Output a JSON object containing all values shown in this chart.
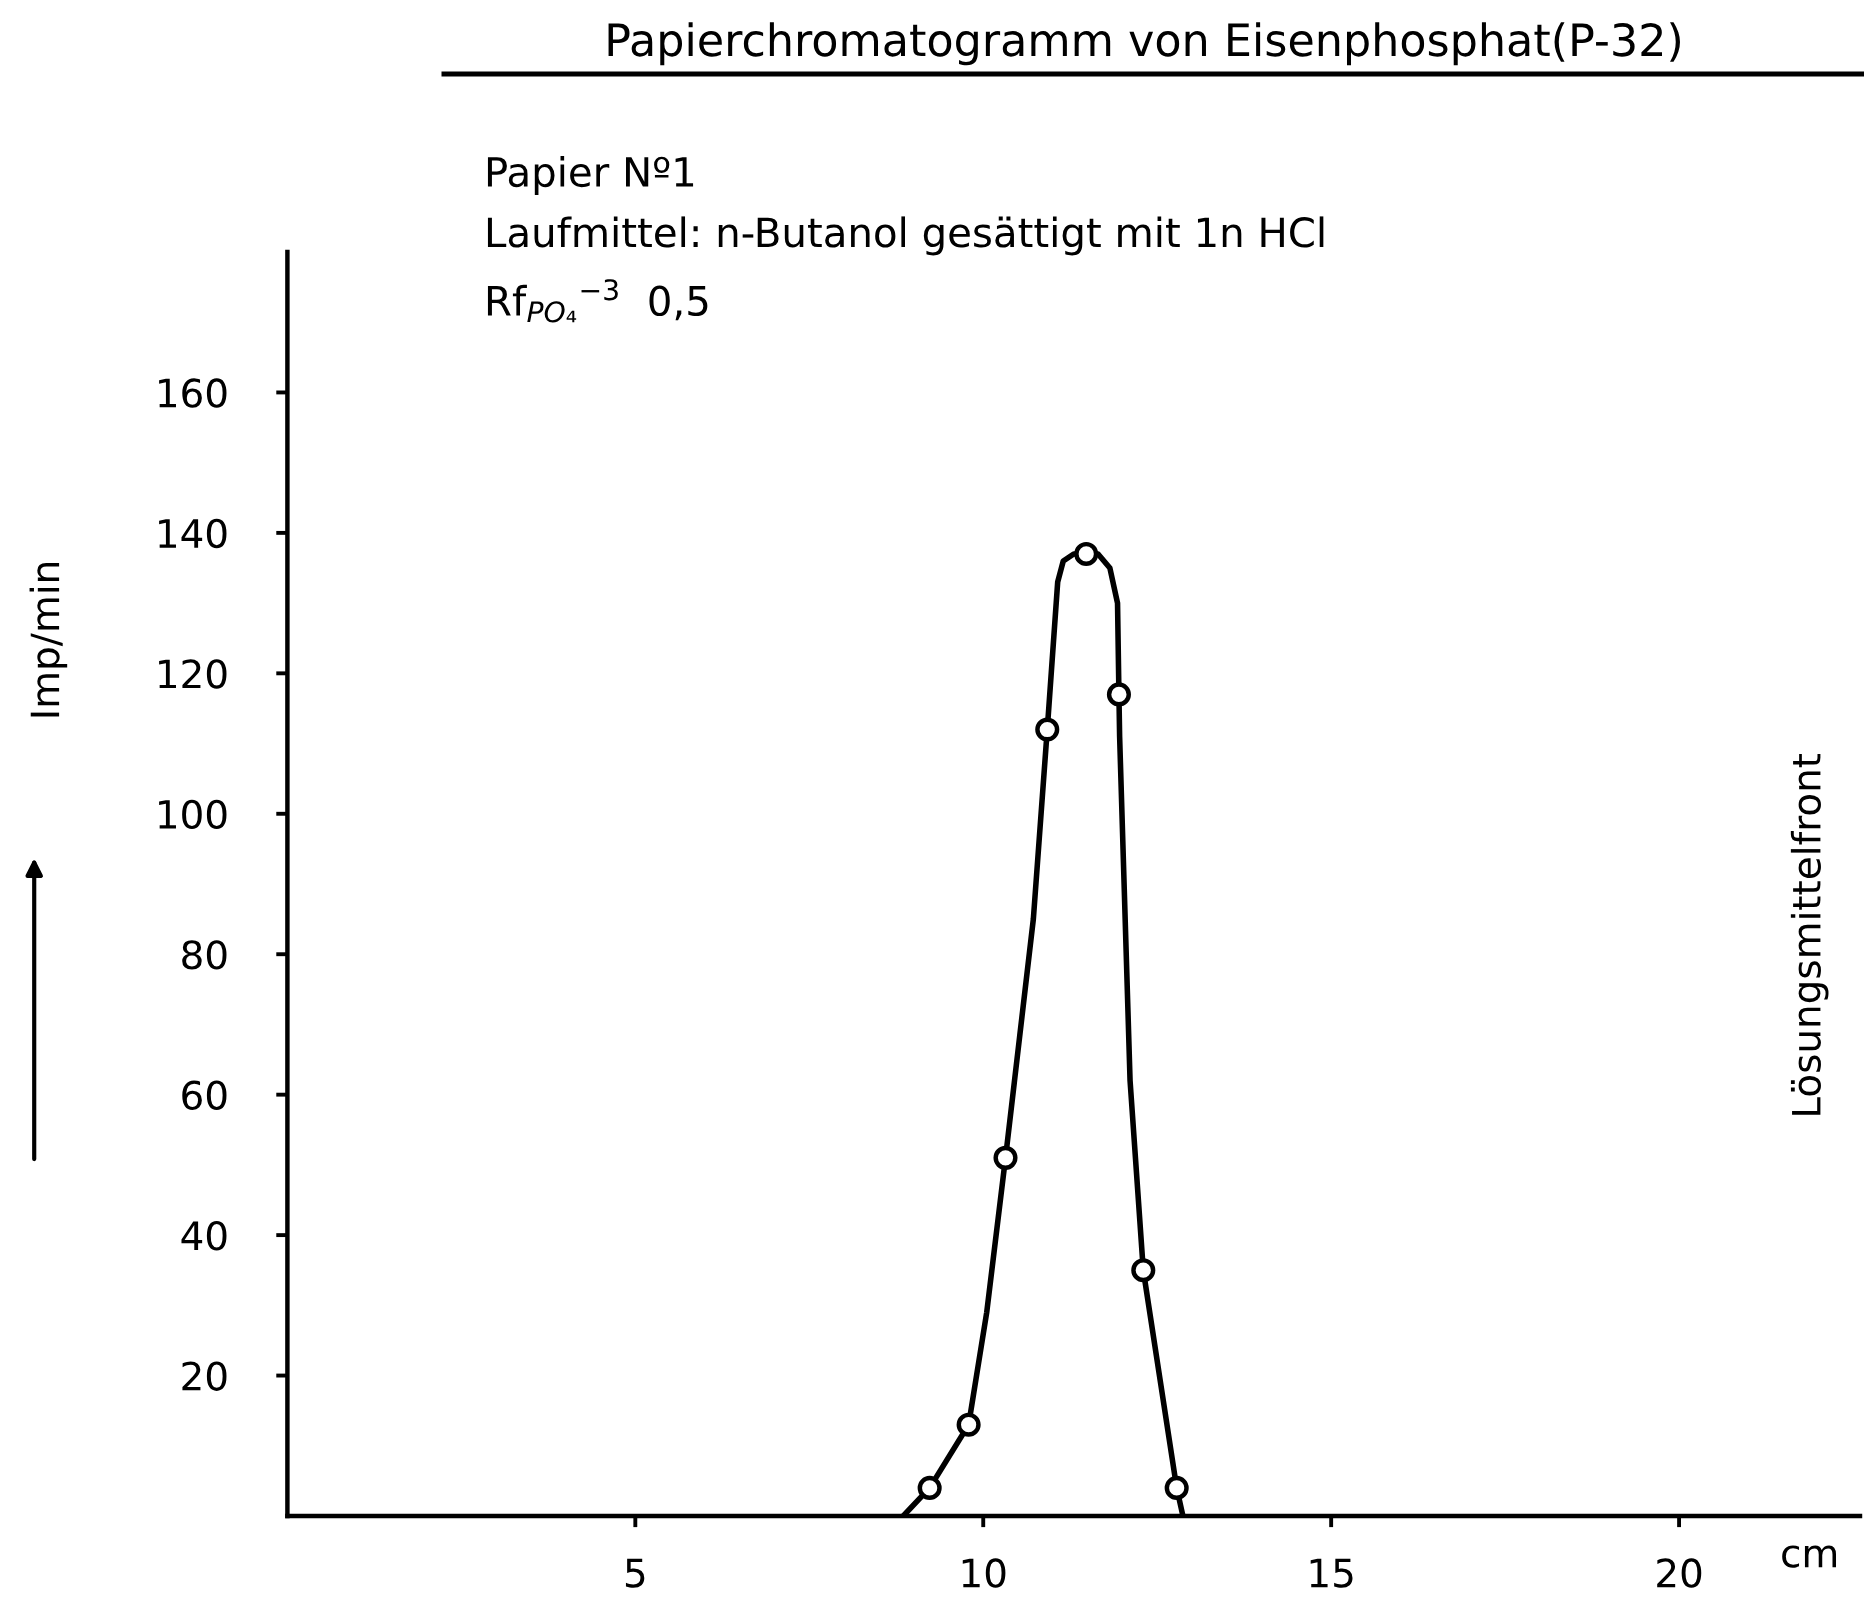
{
  "chart_data": {
    "type": "line",
    "title": "Papierchromatogramm von Eisenphosphat(P-32)",
    "subtitle": "Papier Nº1\nLaufmittel: n-Butanol gesättigt mit 1n HCl\nRf$_{PO₄}$$^{−3}$  0,5",
    "xlabel": "cm",
    "ylabel": "Imp/min",
    "annotations": [
      "Lösungsmittelfront"
    ],
    "xlim": [
      0,
      22.6
    ],
    "ylim": [
      0,
      180
    ],
    "xticks": [
      5,
      10,
      15,
      20
    ],
    "yticks": [
      20,
      40,
      60,
      80,
      100,
      120,
      140,
      160
    ],
    "grid": false,
    "series": [
      {
        "color": "#000000",
        "line_style": "solid",
        "x": [
          8.85,
          9.23,
          9.79,
          10.05,
          10.32,
          10.72,
          10.92,
          11.07,
          11.15,
          11.3,
          11.48,
          11.65,
          11.82,
          11.93,
          11.95,
          11.96,
          12.11,
          12.3,
          12.78,
          12.87
        ],
        "values": [
          0,
          4,
          13,
          29,
          51,
          85,
          112,
          133,
          136,
          137,
          137,
          137,
          135,
          130,
          117,
          111,
          62,
          35,
          4,
          0
        ]
      },
      {
        "type": "scatter",
        "color": "#000000",
        "marker": "circle",
        "x": [
          9.23,
          9.79,
          10.32,
          10.92,
          11.48,
          11.95,
          12.3,
          12.78
        ],
        "values": [
          4,
          13,
          51,
          112,
          137,
          117,
          35,
          4
        ]
      }
    ]
  }
}
